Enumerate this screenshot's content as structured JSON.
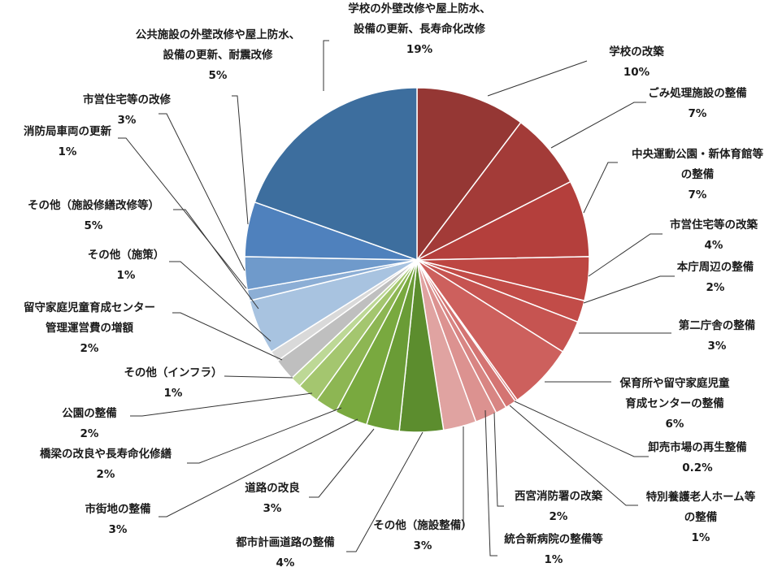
{
  "chart_data": {
    "type": "pie",
    "title": "",
    "start_angle_deg": 0,
    "direction": "clockwise",
    "slices": [
      {
        "name": "学校の改築",
        "lines": [
          "学校の改築"
        ],
        "value": 10,
        "pct": "10%",
        "color": "#953734"
      },
      {
        "name": "ごみ処理施設の整備",
        "lines": [
          "ごみ処理施設の整備"
        ],
        "value": 7,
        "pct": "7%",
        "color": "#a33b38"
      },
      {
        "name": "中央運動公園・新体育館等の整備",
        "lines": [
          "中央運動公園・新体育館等",
          "の整備"
        ],
        "value": 7,
        "pct": "7%",
        "color": "#b43f3c"
      },
      {
        "name": "市営住宅等の改築",
        "lines": [
          "市営住宅等の改築"
        ],
        "value": 4,
        "pct": "4%",
        "color": "#bd4642"
      },
      {
        "name": "本庁周辺の整備",
        "lines": [
          "本庁周辺の整備"
        ],
        "value": 2,
        "pct": "2%",
        "color": "#c24c48"
      },
      {
        "name": "第二庁舎の整備",
        "lines": [
          "第二庁舎の整備"
        ],
        "value": 3,
        "pct": "3%",
        "color": "#c65451"
      },
      {
        "name": "保育所や留守家庭児童育成センターの整備",
        "lines": [
          "保育所や留守家庭児童",
          "育成センターの整備"
        ],
        "value": 6,
        "pct": "6%",
        "color": "#cd605d"
      },
      {
        "name": "卸売市場の再生整備",
        "lines": [
          "卸売市場の再生整備"
        ],
        "value": 0.2,
        "pct": "0.2%",
        "color": "#d16a67"
      },
      {
        "name": "特別養護老人ホーム等の整備",
        "lines": [
          "特別養護老人ホーム等",
          "の整備"
        ],
        "value": 1,
        "pct": "1%",
        "color": "#d47472"
      },
      {
        "name": "統合新病院の整備等",
        "lines": [
          "統合新病院の整備等"
        ],
        "value": 1,
        "pct": "1%",
        "color": "#d88583"
      },
      {
        "name": "西宮消防署の改築",
        "lines": [
          "西宮消防署の改築"
        ],
        "value": 2,
        "pct": "2%",
        "color": "#dc9290"
      },
      {
        "name": "その他（施設整備）",
        "lines": [
          "その他（施設整備）"
        ],
        "value": 3,
        "pct": "3%",
        "color": "#e0a3a1"
      },
      {
        "name": "都市計画道路の整備",
        "lines": [
          "都市計画道路の整備"
        ],
        "value": 4,
        "pct": "4%",
        "color": "#5c8d2e"
      },
      {
        "name": "道路の改良",
        "lines": [
          "道路の改良"
        ],
        "value": 3,
        "pct": "3%",
        "color": "#6a9c36"
      },
      {
        "name": "市街地の整備",
        "lines": [
          "市街地の整備"
        ],
        "value": 3,
        "pct": "3%",
        "color": "#79a93f"
      },
      {
        "name": "橋梁の改良や長寿命化修繕",
        "lines": [
          "橋梁の改良や長寿命化修繕"
        ],
        "value": 2,
        "pct": "2%",
        "color": "#8db653"
      },
      {
        "name": "公園の整備",
        "lines": [
          "公園の整備"
        ],
        "value": 2,
        "pct": "2%",
        "color": "#a4c66f"
      },
      {
        "name": "その他（インフラ）",
        "lines": [
          "その他（インフラ）"
        ],
        "value": 1,
        "pct": "1%",
        "color": "#bdd896"
      },
      {
        "name": "留守家庭児童育成センター管理運営費の増額",
        "lines": [
          "留守家庭児童育成センター",
          "管理運営費の増額"
        ],
        "value": 2,
        "pct": "2%",
        "color": "#bfbfbf"
      },
      {
        "name": "その他（施策）",
        "lines": [
          "その他（施策）"
        ],
        "value": 1,
        "pct": "1%",
        "color": "#d9d9d9"
      },
      {
        "name": "その他（施設修繕改修等）",
        "lines": [
          "その他（施設修繕改修等）"
        ],
        "value": 5,
        "pct": "5%",
        "color": "#a8c3e0"
      },
      {
        "name": "消防局車両の更新",
        "lines": [
          "消防局車両の更新"
        ],
        "value": 1,
        "pct": "1%",
        "color": "#8caed5"
      },
      {
        "name": "市営住宅等の改修",
        "lines": [
          "市営住宅等の改修"
        ],
        "value": 3,
        "pct": "3%",
        "color": "#6f9acb"
      },
      {
        "name": "公共施設の外壁改修や屋上防水、設備の更新、耐震改修",
        "lines": [
          "公共施設の外壁改修や屋上防水、",
          "設備の更新、耐震改修"
        ],
        "value": 5,
        "pct": "5%",
        "color": "#4f81bd"
      },
      {
        "name": "学校の外壁改修や屋上防水、設備の更新、長寿命化改修",
        "lines": [
          "学校の外壁改修や屋上防水、",
          "設備の更新、長寿命化改修"
        ],
        "value": 19,
        "pct": "19%",
        "color": "#3d6e9e"
      }
    ]
  }
}
